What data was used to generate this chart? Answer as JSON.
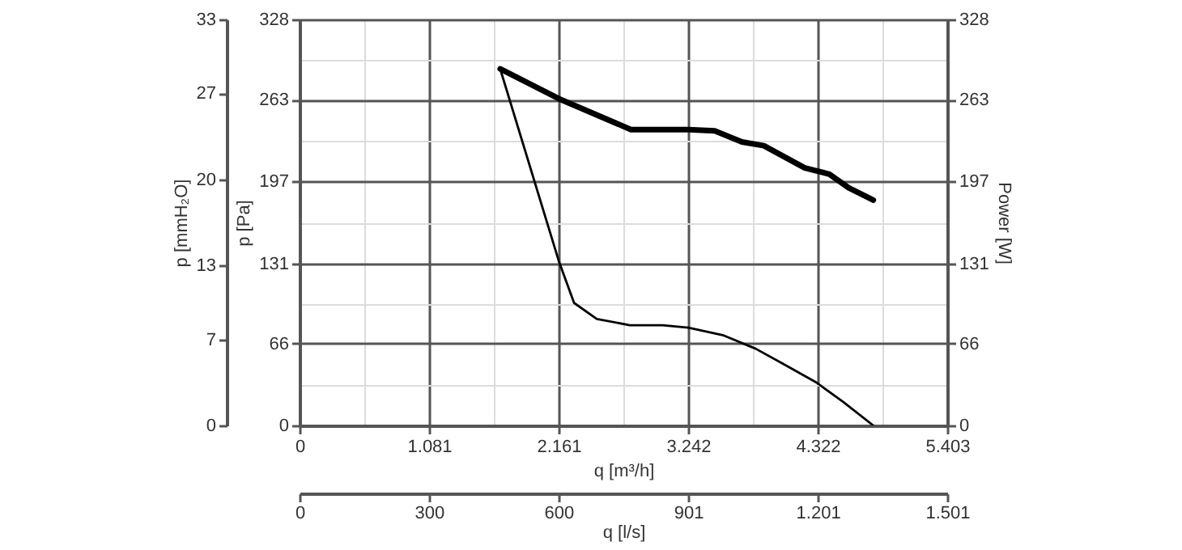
{
  "chart_data": {
    "type": "line",
    "xlabel": "q [m³/h]",
    "ylabel": "p [Pa]",
    "y2label": "Power [W]",
    "y3label": "p [mmH₂O]",
    "x2label": "q [l/s]",
    "xlim": [
      0,
      5.403
    ],
    "xticks": [
      0,
      {
        "value": 0.5405,
        "label": null
      },
      1.081,
      {
        "value": 1.621,
        "label": null
      },
      2.161,
      {
        "value": 2.7015,
        "label": null
      },
      3.242,
      {
        "value": 3.782,
        "label": null
      },
      4.322,
      {
        "value": 4.8625,
        "label": null
      },
      5.403
    ],
    "ylim": [
      0,
      328
    ],
    "yticks": [
      0,
      {
        "value": 32.8,
        "label": null
      },
      66,
      {
        "value": 98.4,
        "label": null
      },
      131,
      {
        "value": 164,
        "label": null
      },
      197,
      {
        "value": 229.6,
        "label": null
      },
      263,
      {
        "value": 295.2,
        "label": null
      },
      328
    ],
    "y2lim": [
      0,
      328
    ],
    "y2ticks": [
      0,
      66,
      131,
      197,
      263,
      328
    ],
    "y3lim": [
      0,
      33
    ],
    "y3ticks": [
      0,
      7,
      13,
      20,
      27,
      33
    ],
    "x2lim": [
      0,
      1501
    ],
    "x2ticks": [
      0,
      300,
      600,
      901,
      {
        "value": 1201,
        "label": "1.201"
      },
      {
        "value": 1501,
        "label": "1.501"
      }
    ],
    "grid": true,
    "series": [
      {
        "color": "#000000",
        "x": [
          1.674,
          2.162,
          2.29,
          2.48,
          2.755,
          3.03,
          3.244,
          3.53,
          3.805,
          4.03,
          4.307,
          4.535,
          4.786
        ],
        "values": [
          288,
          133,
          99,
          86,
          81,
          81,
          79,
          73,
          62,
          50,
          35,
          19,
          0
        ]
      },
      {
        "color": "#000000",
        "axis": "y2",
        "x": [
          1.674,
          2.162,
          2.765,
          3.244,
          3.463,
          3.691,
          3.873,
          4.215,
          4.42,
          4.58,
          4.786
        ],
        "values": [
          288,
          264,
          239,
          239,
          238,
          229,
          226,
          208,
          203,
          192,
          182
        ]
      }
    ]
  }
}
